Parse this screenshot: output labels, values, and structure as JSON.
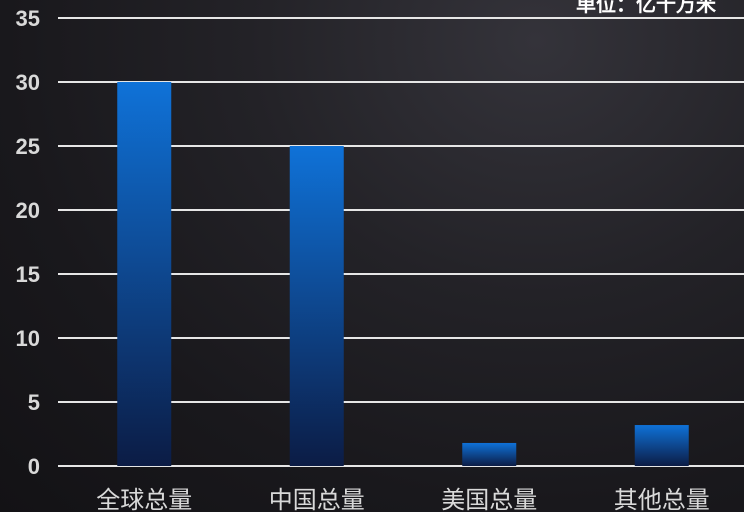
{
  "chart_data": {
    "type": "bar",
    "unit_label": "单位：亿千万米",
    "categories": [
      "全球总量",
      "中国总量",
      "美国总量",
      "其他总量"
    ],
    "values": [
      30,
      25,
      1.8,
      3.2
    ],
    "ylim": [
      0,
      35
    ],
    "yticks": [
      "0",
      "5",
      "10",
      "15",
      "20",
      "25",
      "30",
      "35"
    ],
    "grid": true,
    "colors": {
      "bar_top": "#0f72d8",
      "bar_bottom": "#0c1c45",
      "grid": "#e6e6e6",
      "text": "#d9d9d9"
    }
  }
}
